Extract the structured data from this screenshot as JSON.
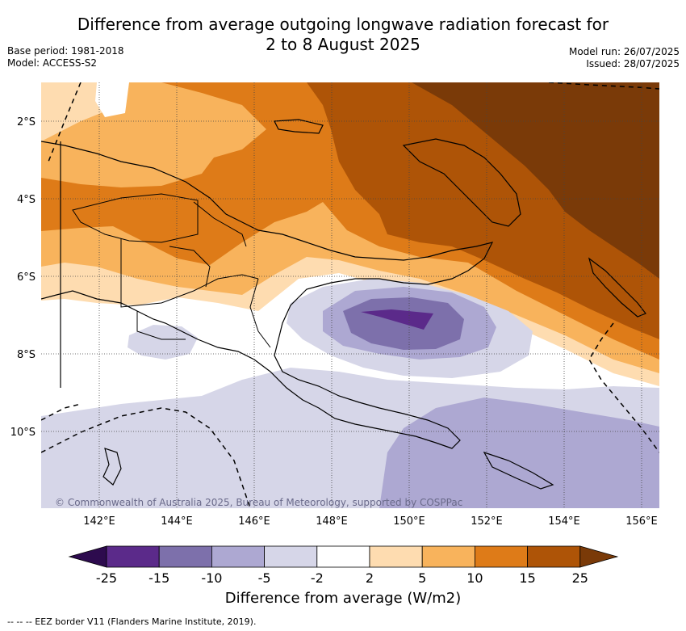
{
  "title": {
    "line1": "Difference from average outgoing longwave radiation forecast for",
    "line2": "2 to 8 August 2025"
  },
  "meta_left": {
    "base_period": "Base period: 1981-2018",
    "model": "Model: ACCESS-S2"
  },
  "meta_right": {
    "model_run": "Model run: 26/07/2025",
    "issued": "Issued: 28/07/2025"
  },
  "attribution": "© Commonwealth of Australia 2025, Bureau of Meteorology, supported by COSPPac",
  "lat_ticks": [
    "2°S",
    "4°S",
    "6°S",
    "8°S",
    "10°S"
  ],
  "lon_ticks": [
    "142°E",
    "144°E",
    "146°E",
    "148°E",
    "150°E",
    "152°E",
    "154°E",
    "156°E"
  ],
  "colorbar": {
    "boundaries": [
      "-25",
      "-15",
      "-10",
      "-5",
      "-2",
      "2",
      "5",
      "10",
      "15",
      "25"
    ],
    "colors": [
      "#2d0b4e",
      "#5b2a8a",
      "#7d70ab",
      "#ada8d2",
      "#d6d6e8",
      "#ffffff",
      "#fedcb0",
      "#f8b35c",
      "#de7b18",
      "#ae5407",
      "#7a3a08"
    ],
    "label": "Difference from average (W/m2)"
  },
  "footnote": "--  --  -- EEZ border V11 (Flanders Marine Institute, 2019)."
}
